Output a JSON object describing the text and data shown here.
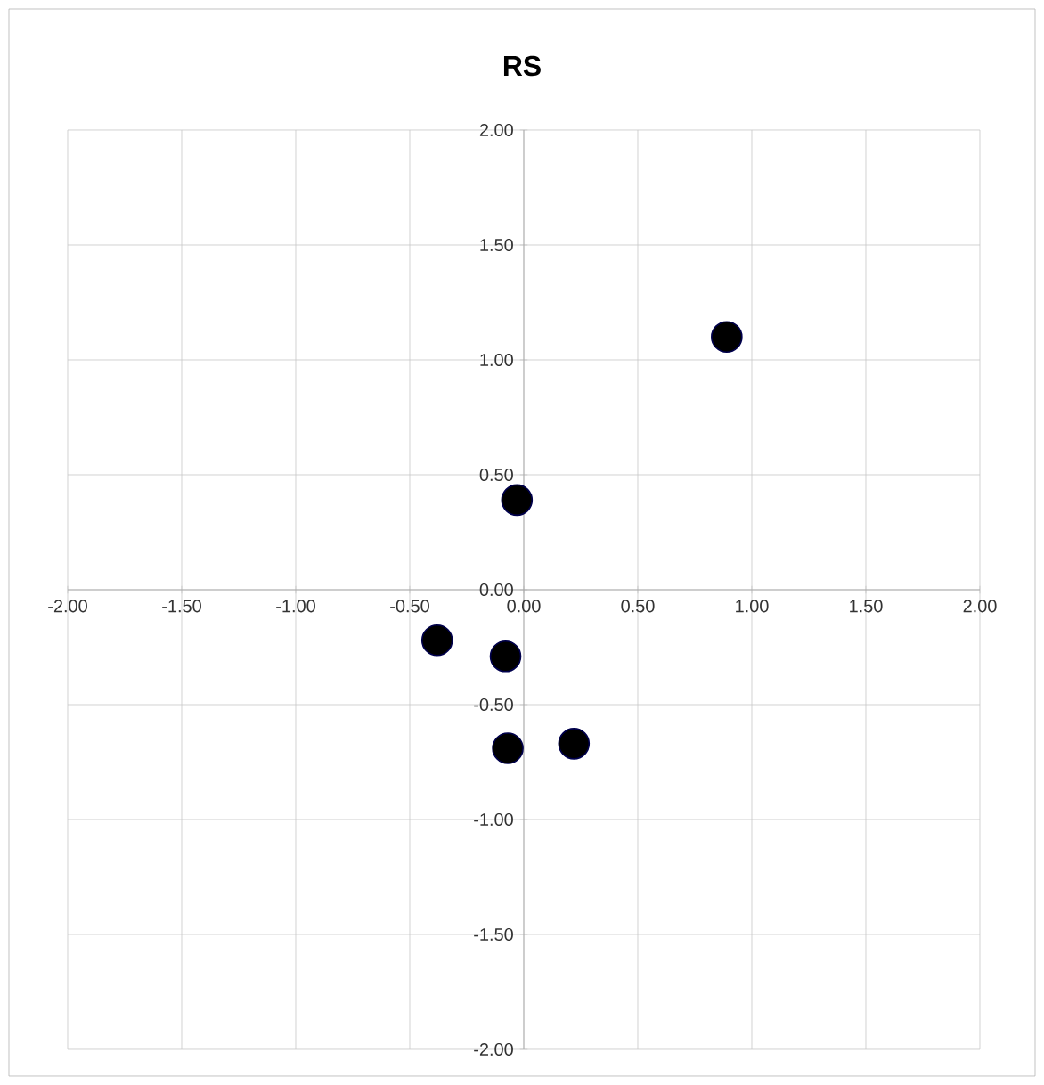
{
  "chart_data": {
    "type": "scatter",
    "title": "RS",
    "x": [
      0.89,
      -0.03,
      -0.38,
      -0.08,
      -0.07,
      0.22
    ],
    "values": [
      1.1,
      0.39,
      -0.22,
      -0.29,
      -0.69,
      -0.67
    ],
    "color": "#000000",
    "marker": "circle",
    "grid": true,
    "xlim": [
      -2,
      2
    ],
    "ylim": [
      -2,
      2
    ],
    "xticks": [
      {
        "value": -2,
        "label": "-2.00"
      },
      {
        "value": -1.5,
        "label": "-1.50"
      },
      {
        "value": -1,
        "label": "-1.00"
      },
      {
        "value": -0.5,
        "label": "-0.50"
      },
      {
        "value": 0,
        "label": "0.00"
      },
      {
        "value": 0.5,
        "label": "0.50"
      },
      {
        "value": 1,
        "label": "1.00"
      },
      {
        "value": 1.5,
        "label": "1.50"
      },
      {
        "value": 2,
        "label": "2.00"
      }
    ],
    "yticks": [
      {
        "value": -2,
        "label": "-2.00"
      },
      {
        "value": -1.5,
        "label": "-1.50"
      },
      {
        "value": -1,
        "label": "-1.00"
      },
      {
        "value": -0.5,
        "label": "-0.50"
      },
      {
        "value": 0,
        "label": "0.00"
      },
      {
        "value": 0.5,
        "label": "0.50"
      },
      {
        "value": 1,
        "label": "1.00"
      },
      {
        "value": 1.5,
        "label": "1.50"
      },
      {
        "value": 2,
        "label": "2.00"
      }
    ]
  }
}
